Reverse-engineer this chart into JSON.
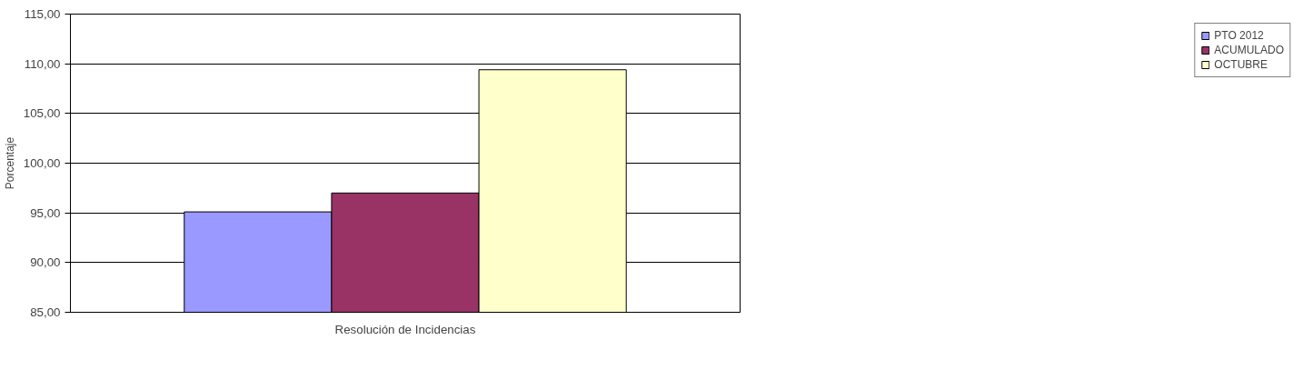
{
  "chart_data": {
    "type": "bar",
    "ylabel": "Porcentaje",
    "categories": [
      "Resolución de Incidencias"
    ],
    "series": [
      {
        "name": "PTO 2012",
        "color": "#9999ff",
        "values": [
          95.1
        ]
      },
      {
        "name": "ACUMULADO",
        "color": "#993366",
        "values": [
          97.0
        ]
      },
      {
        "name": "OCTUBRE",
        "color": "#ffffcc",
        "values": [
          109.4
        ]
      }
    ],
    "ylim": [
      85,
      115
    ],
    "yticks": [
      {
        "value": 85,
        "label": "85,00"
      },
      {
        "value": 90,
        "label": "90,00"
      },
      {
        "value": 95,
        "label": "95,00"
      },
      {
        "value": 100,
        "label": "100,00"
      },
      {
        "value": 105,
        "label": "105,00"
      },
      {
        "value": 110,
        "label": "110,00"
      },
      {
        "value": 115,
        "label": "115,00"
      }
    ],
    "grid": "y",
    "legend": "right"
  }
}
